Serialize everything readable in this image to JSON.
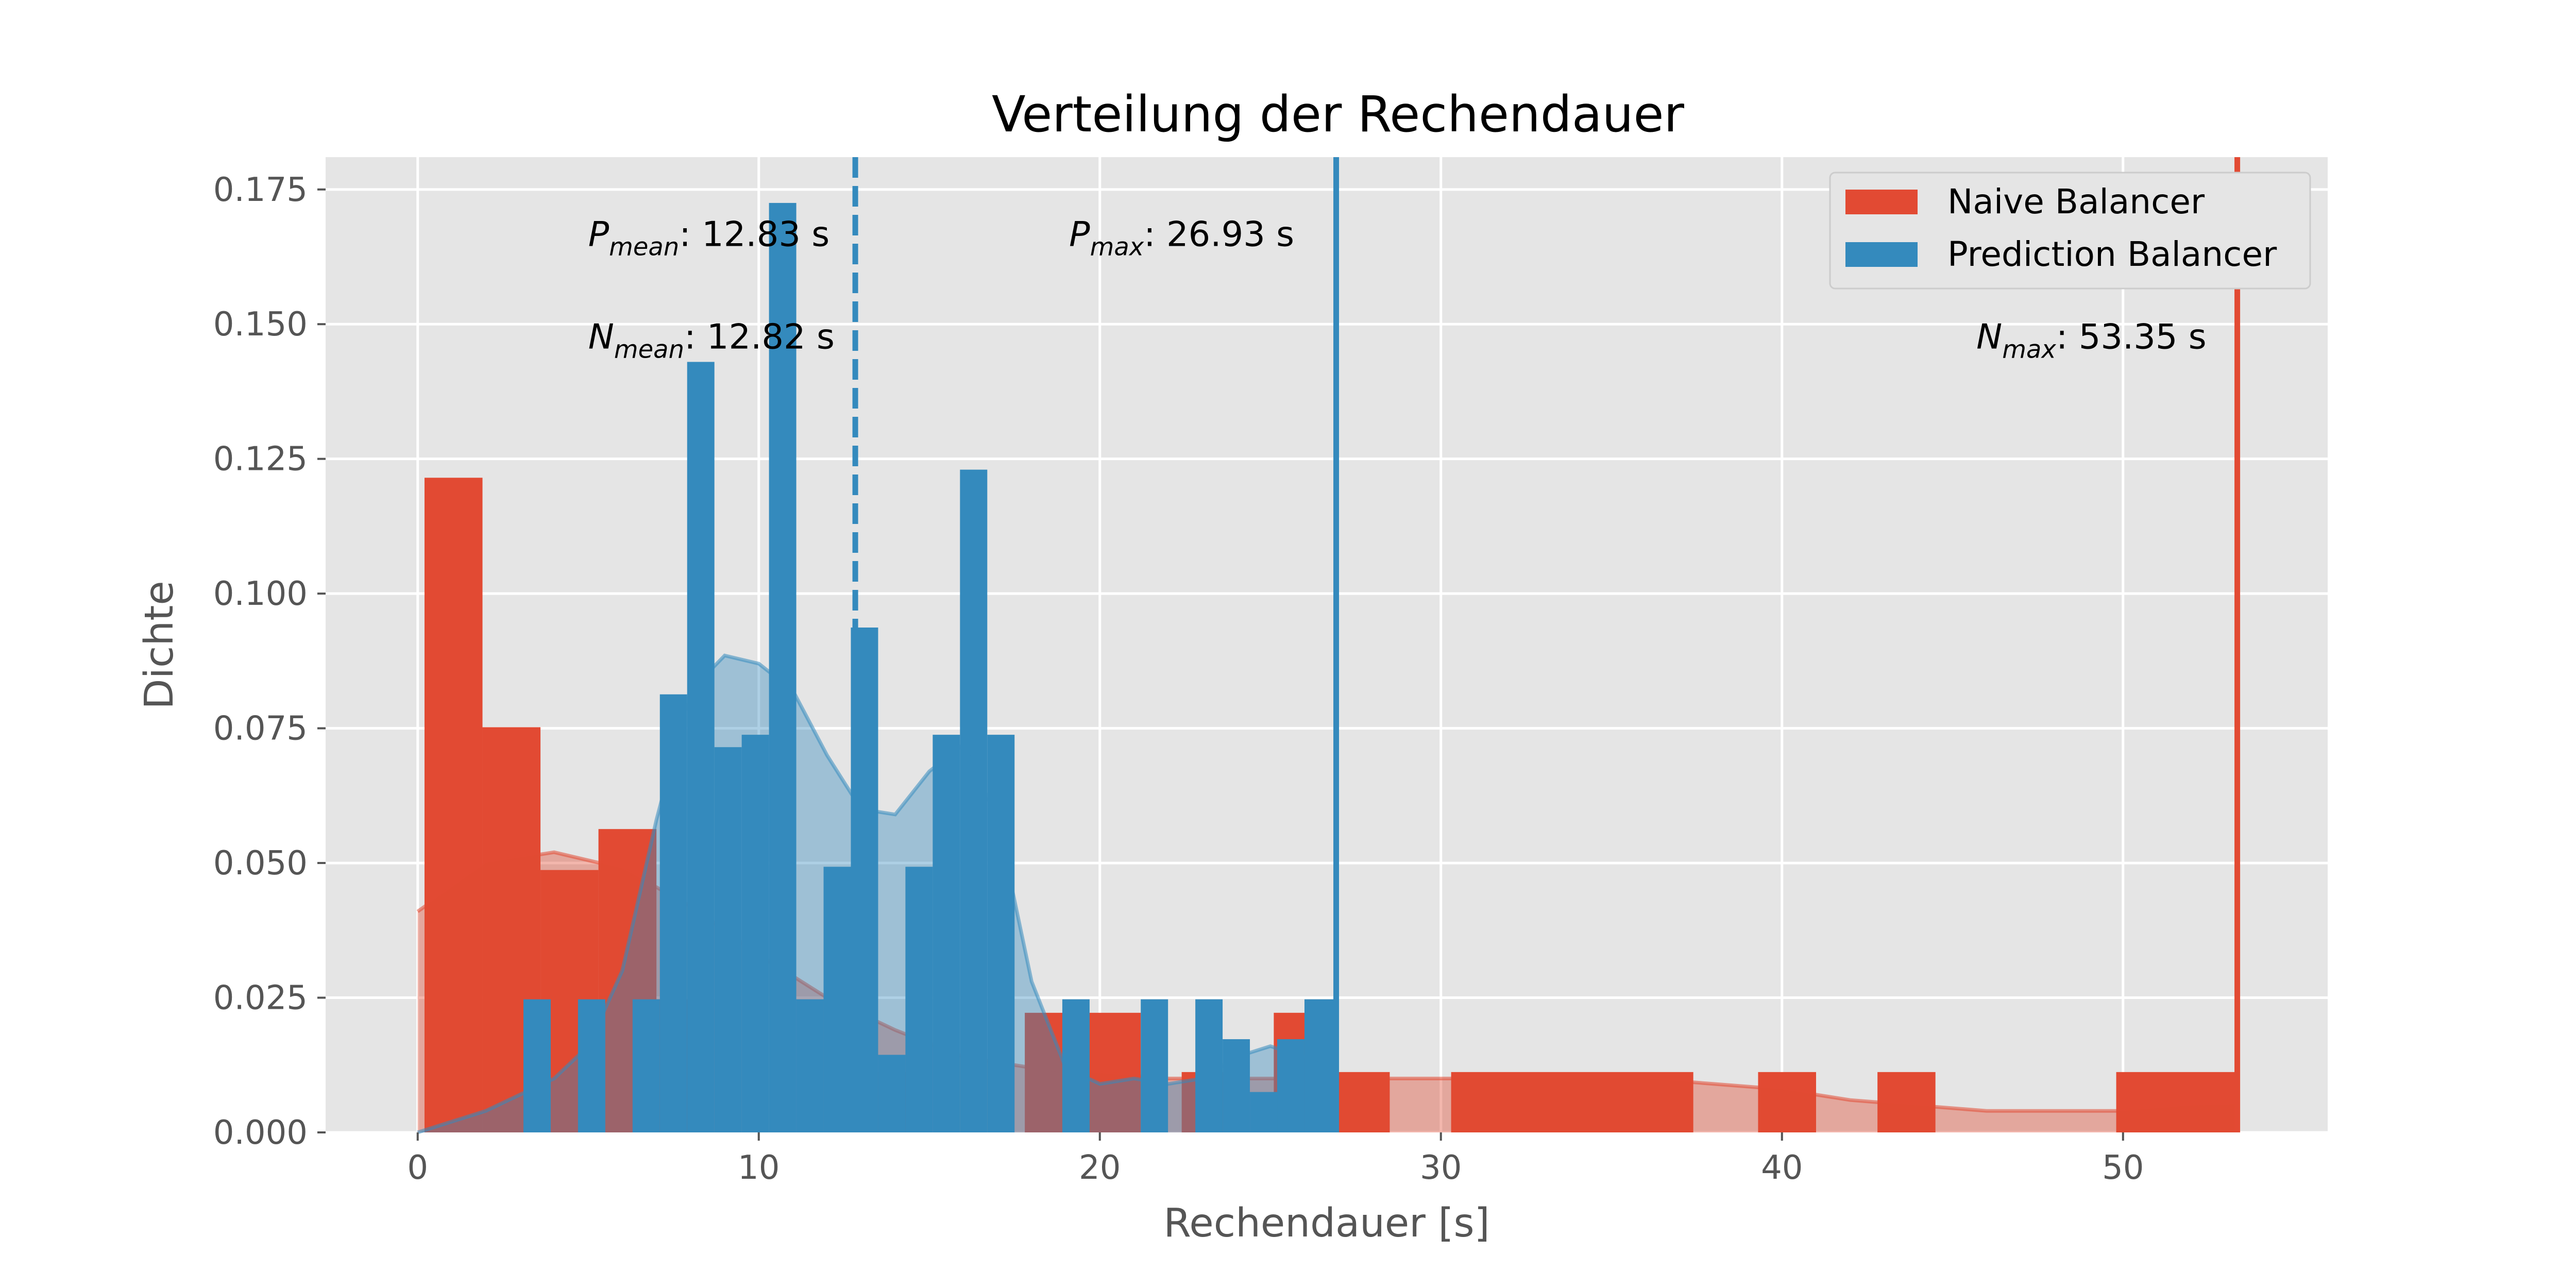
{
  "chart_data": {
    "type": "histogram",
    "title": "Verteilung der Rechendauer",
    "xlabel": "Rechendauer [s]",
    "ylabel": "Dichte",
    "xlim": [
      -2.7,
      56
    ],
    "ylim": [
      0,
      0.181
    ],
    "xticks": [
      0,
      10,
      20,
      30,
      40,
      50
    ],
    "yticks": [
      0.0,
      0.025,
      0.05,
      0.075,
      0.1,
      0.125,
      0.15,
      0.175
    ],
    "ytick_labels": [
      "0.000",
      "0.025",
      "0.050",
      "0.075",
      "0.100",
      "0.125",
      "0.150",
      "0.175"
    ],
    "grid": true,
    "legend_position": "upper right",
    "colors": {
      "naive": "#E24A33",
      "prediction": "#348ABD",
      "background": "#E5E5E5",
      "grid": "#FFFFFF",
      "axis_text": "#555555"
    },
    "series": [
      {
        "name": "Naive Balancer",
        "bins": [
          {
            "x0": 0.2,
            "x1": 1.9,
            "y": 0.1215
          },
          {
            "x0": 1.9,
            "x1": 3.6,
            "y": 0.0752
          },
          {
            "x0": 3.6,
            "x1": 5.3,
            "y": 0.0487
          },
          {
            "x0": 5.3,
            "x1": 7.0,
            "y": 0.0563
          },
          {
            "x0": 7.0,
            "x1": 8.7,
            "y": 0.0247
          },
          {
            "x0": 12.8,
            "x1": 14.5,
            "y": 0.0112
          },
          {
            "x0": 17.8,
            "x1": 19.5,
            "y": 0.0222
          },
          {
            "x0": 19.5,
            "x1": 21.2,
            "y": 0.0222
          },
          {
            "x0": 22.4,
            "x1": 24.1,
            "y": 0.0112
          },
          {
            "x0": 25.1,
            "x1": 26.8,
            "y": 0.0222
          },
          {
            "x0": 26.8,
            "x1": 28.5,
            "y": 0.0112
          },
          {
            "x0": 30.3,
            "x1": 37.4,
            "y": 0.0112
          },
          {
            "x0": 39.3,
            "x1": 41.0,
            "y": 0.0112
          },
          {
            "x0": 42.8,
            "x1": 44.5,
            "y": 0.0112
          },
          {
            "x0": 49.8,
            "x1": 53.4,
            "y": 0.0112
          }
        ],
        "kde": {
          "x": [
            0,
            2,
            4,
            6,
            8,
            10,
            12,
            14,
            16,
            18,
            20,
            22,
            24,
            26,
            28,
            30,
            32,
            34,
            36,
            38,
            40,
            42,
            44,
            46,
            48,
            50,
            52,
            53.35
          ],
          "y": [
            0.041,
            0.05,
            0.052,
            0.049,
            0.042,
            0.033,
            0.025,
            0.019,
            0.014,
            0.012,
            0.011,
            0.01,
            0.01,
            0.01,
            0.01,
            0.01,
            0.01,
            0.01,
            0.01,
            0.009,
            0.008,
            0.006,
            0.005,
            0.004,
            0.004,
            0.004,
            0.005,
            0.0052
          ]
        }
      },
      {
        "name": "Prediction Balancer",
        "bins": [
          {
            "x0": 3.1,
            "x1": 3.9,
            "y": 0.0247
          },
          {
            "x0": 4.7,
            "x1": 5.5,
            "y": 0.0247
          },
          {
            "x0": 6.3,
            "x1": 7.1,
            "y": 0.0247
          },
          {
            "x0": 7.1,
            "x1": 7.9,
            "y": 0.0813
          },
          {
            "x0": 7.9,
            "x1": 8.7,
            "y": 0.143
          },
          {
            "x0": 8.7,
            "x1": 9.5,
            "y": 0.0715
          },
          {
            "x0": 9.5,
            "x1": 10.3,
            "y": 0.0738
          },
          {
            "x0": 10.3,
            "x1": 11.1,
            "y": 0.1725
          },
          {
            "x0": 11.1,
            "x1": 11.9,
            "y": 0.0247
          },
          {
            "x0": 11.9,
            "x1": 12.7,
            "y": 0.0493
          },
          {
            "x0": 12.7,
            "x1": 13.5,
            "y": 0.0937
          },
          {
            "x0": 13.5,
            "x1": 14.3,
            "y": 0.0144
          },
          {
            "x0": 14.3,
            "x1": 15.1,
            "y": 0.0493
          },
          {
            "x0": 15.1,
            "x1": 15.9,
            "y": 0.0738
          },
          {
            "x0": 15.9,
            "x1": 16.7,
            "y": 0.123
          },
          {
            "x0": 16.7,
            "x1": 17.5,
            "y": 0.0738
          },
          {
            "x0": 18.9,
            "x1": 19.7,
            "y": 0.0247
          },
          {
            "x0": 21.2,
            "x1": 22.0,
            "y": 0.0247
          },
          {
            "x0": 22.8,
            "x1": 23.6,
            "y": 0.0247
          },
          {
            "x0": 23.6,
            "x1": 24.4,
            "y": 0.0173
          },
          {
            "x0": 24.4,
            "x1": 25.2,
            "y": 0.0075
          },
          {
            "x0": 25.2,
            "x1": 26.0,
            "y": 0.0173
          },
          {
            "x0": 26.0,
            "x1": 26.9,
            "y": 0.0247
          }
        ],
        "kde": {
          "x": [
            0,
            2,
            4,
            5,
            6,
            7,
            8,
            9,
            10,
            11,
            12,
            13,
            14,
            15,
            16,
            17,
            18,
            19,
            20,
            21,
            22,
            23,
            24,
            25,
            26,
            26.93
          ],
          "y": [
            0.0,
            0.004,
            0.01,
            0.016,
            0.03,
            0.058,
            0.082,
            0.0885,
            0.087,
            0.082,
            0.07,
            0.06,
            0.059,
            0.067,
            0.072,
            0.058,
            0.028,
            0.012,
            0.009,
            0.01,
            0.009,
            0.01,
            0.014,
            0.016,
            0.014,
            0.011
          ]
        }
      }
    ],
    "reference_lines": [
      {
        "series": "Prediction Balancer",
        "x": 12.83,
        "style": "dashed"
      },
      {
        "series": "Prediction Balancer",
        "x": 26.93,
        "style": "solid"
      },
      {
        "series": "Naive Balancer",
        "x": 53.35,
        "style": "solid"
      }
    ],
    "annotations": [
      {
        "symbol": "P",
        "sub": "mean",
        "text": ": 12.83 s"
      },
      {
        "symbol": "N",
        "sub": "mean",
        "text": ": 12.82 s"
      },
      {
        "symbol": "P",
        "sub": "max",
        "text": ": 26.93 s"
      },
      {
        "symbol": "N",
        "sub": "max",
        "text": ": 53.35 s"
      }
    ]
  }
}
